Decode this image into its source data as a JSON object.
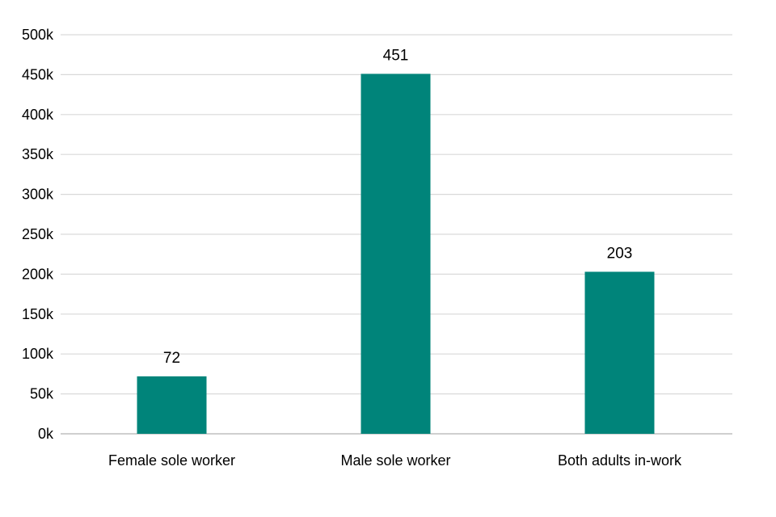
{
  "chart_data": {
    "type": "bar",
    "categories": [
      "Female sole worker",
      "Male sole worker",
      "Both adults in-work"
    ],
    "values": [
      72,
      451,
      203
    ],
    "data_labels": [
      "72",
      "451",
      "203"
    ],
    "y_tick_values": [
      0,
      50,
      100,
      150,
      200,
      250,
      300,
      350,
      400,
      450,
      500
    ],
    "y_tick_labels": [
      "0k",
      "50k",
      "100k",
      "150k",
      "200k",
      "250k",
      "300k",
      "350k",
      "400k",
      "450k",
      "500k"
    ],
    "ylim": [
      0,
      500
    ],
    "grid": true,
    "legend": "none",
    "title": "",
    "xlabel": "",
    "ylabel": "",
    "colors": {
      "bar": "#00847a",
      "grid": "#d9d9d9",
      "axis": "#bfbfbf"
    }
  }
}
